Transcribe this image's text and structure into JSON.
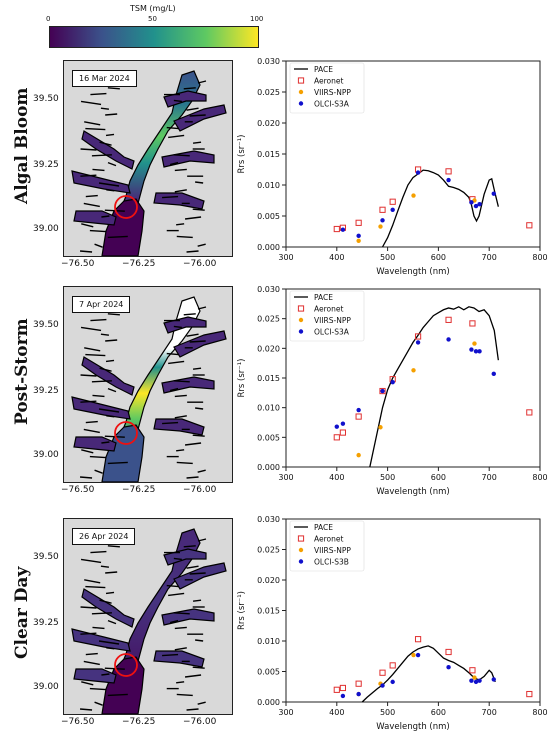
{
  "colorbar": {
    "title": "TSM (mg/L)",
    "ticks": [
      0,
      50,
      100
    ],
    "stops": [
      "#440154",
      "#3b528b",
      "#21918c",
      "#5ec962",
      "#fde725"
    ]
  },
  "map_ticks": {
    "y": [
      "39.50",
      "39.25",
      "39.00"
    ],
    "x": [
      "−76.50",
      "−76.25",
      "−76.00"
    ]
  },
  "rows": [
    {
      "label": "Algal Bloom",
      "date": "16 Mar 2024"
    },
    {
      "label": "Post-Storm",
      "date": "7 Apr 2024"
    },
    {
      "label": "Clear Day",
      "date": "26 Apr 2024"
    }
  ],
  "chart_data": [
    {
      "type": "line",
      "xlabel": "Wavelength (nm)",
      "ylabel": "Rrs (sr⁻¹)",
      "xlim": [
        300,
        800
      ],
      "ylim": [
        0,
        0.03
      ],
      "xticks": [
        "300",
        "400",
        "500",
        "600",
        "700",
        "800"
      ],
      "yticks": [
        "0.000",
        "0.005",
        "0.010",
        "0.015",
        "0.020",
        "0.025",
        "0.030"
      ],
      "legend_position": "top-left",
      "series": [
        {
          "name": "PACE",
          "kind": "line",
          "color": "#000000",
          "x": [
            490,
            500,
            510,
            520,
            530,
            540,
            550,
            560,
            570,
            580,
            590,
            600,
            610,
            620,
            630,
            640,
            650,
            660,
            665,
            670,
            675,
            680,
            690,
            700,
            705,
            710,
            718
          ],
          "y": [
            0.0,
            0.0015,
            0.0035,
            0.0058,
            0.008,
            0.01,
            0.0112,
            0.0118,
            0.0124,
            0.0123,
            0.012,
            0.0116,
            0.0108,
            0.0098,
            0.0096,
            0.0093,
            0.0088,
            0.008,
            0.0068,
            0.005,
            0.0042,
            0.005,
            0.0085,
            0.0108,
            0.011,
            0.0092,
            0.0065
          ]
        },
        {
          "name": "Aeronet",
          "kind": "square",
          "color": "#e03030",
          "x": [
            400,
            412,
            443,
            490,
            510,
            560,
            620,
            667,
            779
          ],
          "y": [
            0.0029,
            0.0031,
            0.0039,
            0.006,
            0.0073,
            0.0125,
            0.0122,
            0.0077,
            0.0035
          ]
        },
        {
          "name": "VIIRS-NPP",
          "kind": "dot",
          "color": "#f5a000",
          "x": [
            443,
            486,
            551,
            671
          ],
          "y": [
            0.001,
            0.0033,
            0.0083,
            0.0075
          ]
        },
        {
          "name": "OLCI-S3A",
          "kind": "dot",
          "color": "#1010cc",
          "x": [
            412,
            443,
            490,
            510,
            560,
            620,
            665,
            674,
            681,
            709
          ],
          "y": [
            0.0028,
            0.0018,
            0.0043,
            0.006,
            0.012,
            0.0108,
            0.0072,
            0.0066,
            0.0069,
            0.0086
          ]
        }
      ]
    },
    {
      "type": "line",
      "xlabel": "Wavelength (nm)",
      "ylabel": "Rrs (sr⁻¹)",
      "xlim": [
        300,
        800
      ],
      "ylim": [
        0,
        0.03
      ],
      "xticks": [
        "300",
        "400",
        "500",
        "600",
        "700",
        "800"
      ],
      "yticks": [
        "0.000",
        "0.005",
        "0.010",
        "0.015",
        "0.020",
        "0.025",
        "0.030"
      ],
      "legend_position": "top-left",
      "series": [
        {
          "name": "PACE",
          "kind": "line",
          "color": "#000000",
          "x": [
            465,
            470,
            480,
            490,
            500,
            510,
            520,
            530,
            540,
            550,
            560,
            570,
            580,
            590,
            600,
            610,
            620,
            630,
            640,
            650,
            660,
            670,
            680,
            690,
            700,
            710,
            718
          ],
          "y": [
            0.0,
            0.002,
            0.006,
            0.01,
            0.013,
            0.015,
            0.0165,
            0.018,
            0.0195,
            0.021,
            0.0222,
            0.0235,
            0.0245,
            0.0255,
            0.026,
            0.0265,
            0.0268,
            0.0266,
            0.027,
            0.0265,
            0.027,
            0.0268,
            0.0262,
            0.0265,
            0.0255,
            0.023,
            0.018
          ]
        },
        {
          "name": "Aeronet",
          "kind": "square",
          "color": "#e03030",
          "x": [
            400,
            412,
            443,
            490,
            510,
            560,
            620,
            667,
            779
          ],
          "y": [
            0.005,
            0.0058,
            0.0085,
            0.0128,
            0.0148,
            0.022,
            0.0248,
            0.0242,
            0.0092
          ]
        },
        {
          "name": "VIIRS-NPP",
          "kind": "dot",
          "color": "#f5a000",
          "x": [
            443,
            486,
            551,
            671
          ],
          "y": [
            0.002,
            0.0067,
            0.0163,
            0.0208
          ]
        },
        {
          "name": "OLCI-S3A",
          "kind": "dot",
          "color": "#1010cc",
          "x": [
            400,
            412,
            443,
            490,
            510,
            560,
            620,
            665,
            674,
            681,
            709
          ],
          "y": [
            0.0068,
            0.0073,
            0.0096,
            0.0128,
            0.0143,
            0.021,
            0.0215,
            0.0198,
            0.0195,
            0.0195,
            0.0157
          ]
        }
      ]
    },
    {
      "type": "line",
      "xlabel": "Wavelength (nm)",
      "ylabel": "Rrs (sr⁻¹)",
      "xlim": [
        300,
        800
      ],
      "ylim": [
        0,
        0.03
      ],
      "xticks": [
        "300",
        "400",
        "500",
        "600",
        "700",
        "800"
      ],
      "yticks": [
        "0.000",
        "0.005",
        "0.010",
        "0.015",
        "0.020",
        "0.025",
        "0.030"
      ],
      "legend_position": "top-left",
      "series": [
        {
          "name": "PACE",
          "kind": "line",
          "color": "#000000",
          "x": [
            450,
            460,
            470,
            480,
            490,
            500,
            510,
            520,
            530,
            540,
            550,
            560,
            570,
            580,
            590,
            600,
            610,
            620,
            630,
            640,
            650,
            660,
            670,
            680,
            690,
            700,
            705,
            712
          ],
          "y": [
            0.0,
            0.0008,
            0.0015,
            0.0022,
            0.0028,
            0.0036,
            0.0045,
            0.0055,
            0.0065,
            0.0075,
            0.0082,
            0.0087,
            0.009,
            0.0092,
            0.0088,
            0.008,
            0.0072,
            0.0068,
            0.0065,
            0.006,
            0.0055,
            0.0048,
            0.004,
            0.0036,
            0.0042,
            0.0052,
            0.0048,
            0.0033
          ]
        },
        {
          "name": "Aeronet",
          "kind": "square",
          "color": "#e03030",
          "x": [
            400,
            412,
            443,
            490,
            510,
            560,
            620,
            667,
            779
          ],
          "y": [
            0.002,
            0.0023,
            0.003,
            0.0048,
            0.006,
            0.0103,
            0.0082,
            0.0052,
            0.0013
          ]
        },
        {
          "name": "VIIRS-NPP",
          "kind": "dot",
          "color": "#f5a000",
          "x": [
            443,
            486,
            551,
            671
          ],
          "y": [
            0.0013,
            0.003,
            0.0077,
            0.004
          ]
        },
        {
          "name": "OLCI-S3B",
          "kind": "dot",
          "color": "#1010cc",
          "x": [
            412,
            443,
            490,
            510,
            560,
            620,
            665,
            674,
            681,
            709
          ],
          "y": [
            0.001,
            0.0013,
            0.0027,
            0.0033,
            0.0077,
            0.0057,
            0.0035,
            0.0033,
            0.0035,
            0.0037
          ]
        }
      ]
    }
  ]
}
